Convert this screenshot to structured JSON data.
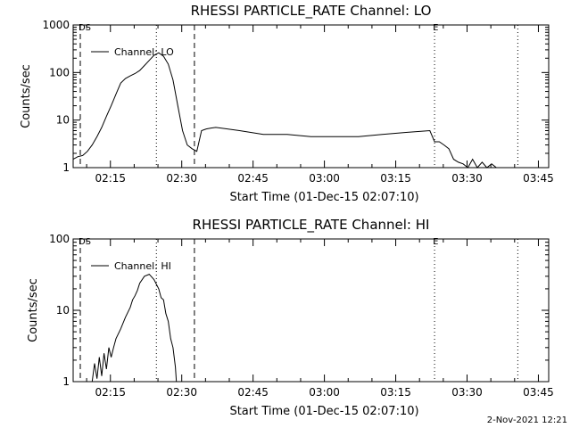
{
  "chart_data": [
    {
      "type": "line",
      "title": "RHESSI PARTICLE_RATE Channel: LO",
      "xlabel": "Start Time (01-Dec-15 02:07:10)",
      "ylabel": "Counts/sec",
      "yscale": "log",
      "ylim": [
        1,
        1000
      ],
      "xlim_minutes": [
        0,
        100
      ],
      "x_ticks": [
        "02:15",
        "02:30",
        "02:45",
        "03:00",
        "03:15",
        "03:30",
        "03:45"
      ],
      "y_ticks": [
        "1",
        "10",
        "100",
        "1000"
      ],
      "legend": "Channel: LO",
      "legend_position": "top-left",
      "markers": [
        {
          "label": "DS",
          "style": "dashed",
          "t": 1.5
        },
        {
          "label": "",
          "style": "dotted",
          "t": 17.5
        },
        {
          "label": "",
          "style": "dashed",
          "t": 25.5
        },
        {
          "label": "E",
          "style": "dotted",
          "t": 76.0
        },
        {
          "label": "",
          "style": "dotted",
          "t": 93.5
        }
      ],
      "series": [
        {
          "name": "Channel: LO",
          "x": [
            0,
            1,
            2,
            3,
            4,
            5,
            6,
            7,
            8,
            9,
            10,
            11,
            12,
            13,
            14,
            15,
            16,
            17,
            18,
            19,
            20,
            21,
            22,
            23,
            24,
            25,
            26,
            27,
            28,
            29,
            30,
            35,
            40,
            45,
            50,
            55,
            60,
            65,
            70,
            75,
            76,
            77,
            78,
            79,
            80,
            81,
            82,
            83,
            84,
            85,
            86,
            87,
            88,
            89,
            90
          ],
          "values": [
            1.5,
            1.7,
            1.8,
            2.2,
            3.0,
            4.5,
            7.0,
            12,
            20,
            35,
            60,
            75,
            85,
            95,
            110,
            140,
            180,
            230,
            260,
            220,
            150,
            70,
            20,
            6,
            3,
            2.5,
            2.2,
            6,
            6.5,
            6.8,
            7,
            6,
            5,
            5,
            4.5,
            4.5,
            4.5,
            5,
            5.5,
            6,
            3.5,
            3.5,
            3,
            2.5,
            1.5,
            1.3,
            1.2,
            1,
            1.5,
            1,
            1.3,
            1,
            1.2,
            1,
            1
          ]
        }
      ]
    },
    {
      "type": "line",
      "title": "RHESSI PARTICLE_RATE Channel: HI",
      "xlabel": "Start Time (01-Dec-15 02:07:10)",
      "ylabel": "Counts/sec",
      "yscale": "log",
      "ylim": [
        1,
        100
      ],
      "xlim_minutes": [
        0,
        100
      ],
      "x_ticks": [
        "02:15",
        "02:30",
        "02:45",
        "03:00",
        "03:15",
        "03:30",
        "03:45"
      ],
      "y_ticks": [
        "1",
        "10",
        "100"
      ],
      "legend": "Channel: HI",
      "legend_position": "top-left",
      "markers": [
        {
          "label": "DS",
          "style": "dashed",
          "t": 1.5
        },
        {
          "label": "",
          "style": "dotted",
          "t": 17.5
        },
        {
          "label": "",
          "style": "dashed",
          "t": 25.5
        },
        {
          "label": "E",
          "style": "dotted",
          "t": 76.0
        },
        {
          "label": "",
          "style": "dotted",
          "t": 93.5
        }
      ],
      "series": [
        {
          "name": "Channel: HI",
          "x": [
            4.0,
            4.5,
            5.0,
            5.5,
            6.0,
            6.5,
            7.0,
            7.5,
            8.0,
            8.5,
            9.0,
            10.0,
            11.0,
            12.0,
            12.5,
            13.0,
            13.5,
            14.0,
            15.0,
            16.0,
            17.0,
            18.0,
            18.5,
            19.0,
            19.5,
            20.0,
            20.5,
            21.0,
            21.5,
            21.7
          ],
          "values": [
            1.0,
            1.8,
            1.1,
            2.2,
            1.2,
            2.5,
            1.5,
            3.0,
            2.2,
            3.0,
            4.0,
            5.5,
            8.0,
            11,
            14,
            16,
            19,
            24,
            30,
            32,
            27,
            20,
            15,
            14,
            9,
            7,
            4,
            3,
            1.6,
            1.0
          ]
        }
      ]
    }
  ],
  "footer": {
    "date": "2-Nov-2021 12:21"
  }
}
